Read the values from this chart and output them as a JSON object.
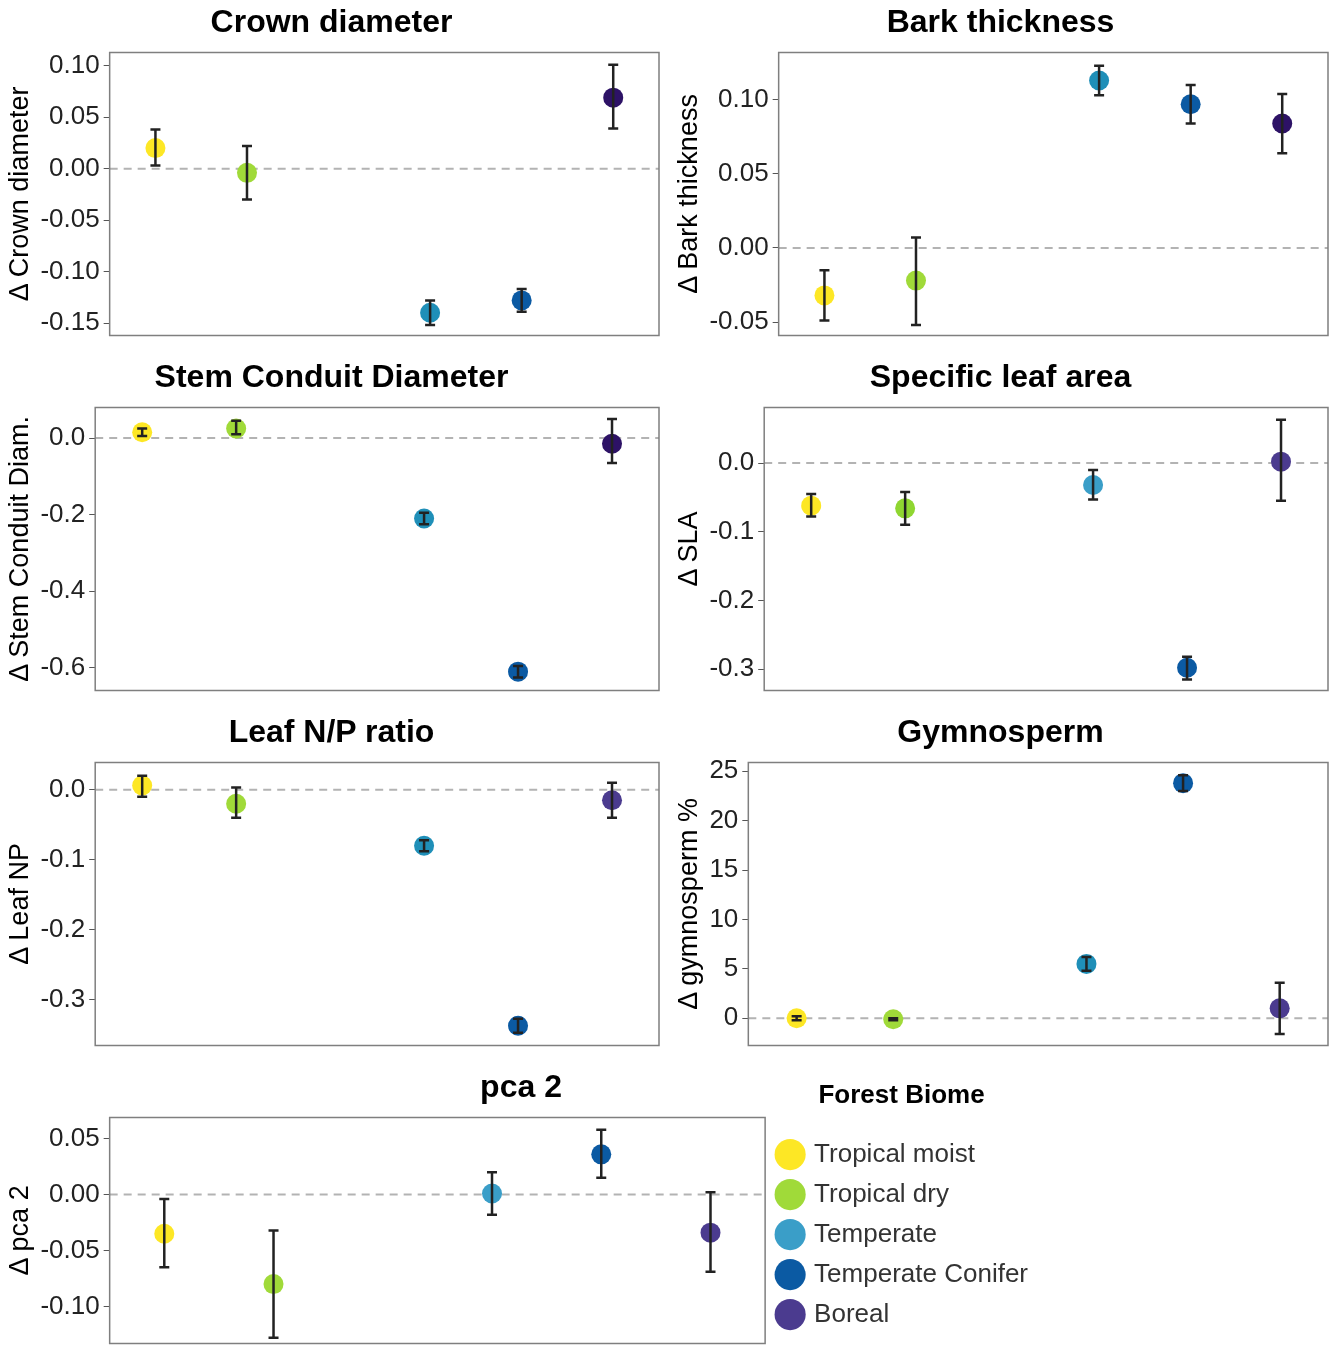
{
  "chart_data": [
    {
      "type": "scatter",
      "title": "Crown diameter",
      "ylabel": "Δ Crown diameter",
      "categories": [
        null,
        null,
        null,
        null,
        null,
        null
      ],
      "marker": "circle",
      "tick_labels": "y",
      "ylim": [
        -0.162,
        0.113
      ],
      "yticks": [
        {
          "value": 0.1,
          "label": "0.10"
        },
        0.05,
        {
          "value": 0,
          "label": "0.00"
        },
        -0.05,
        {
          "value": -0.1,
          "label": "-0.10"
        },
        -0.15
      ],
      "ref_lines": [
        {
          "axis": "y",
          "value": 0,
          "color": "#b3b3b3",
          "line_style": "dashed"
        }
      ],
      "series": [
        {
          "color": "#fde725",
          "values": [
            0.02,
            null,
            null,
            null,
            null,
            null
          ],
          "errors": [
            [
              0.003,
              0.038
            ],
            null,
            null,
            null,
            null,
            null
          ]
        },
        {
          "color": "#a0da39",
          "values": [
            null,
            -0.004,
            null,
            null,
            null,
            null
          ],
          "errors": [
            null,
            [
              -0.03,
              0.022
            ],
            null,
            null,
            null,
            null
          ]
        },
        {
          "color": "#1f8fb8",
          "values": [
            null,
            null,
            null,
            -0.14,
            null,
            null
          ],
          "errors": [
            null,
            null,
            null,
            [
              -0.152,
              -0.128
            ],
            null,
            null
          ]
        },
        {
          "color": "#0b5aa3",
          "values": [
            null,
            null,
            null,
            null,
            -0.128,
            null
          ],
          "errors": [
            null,
            null,
            null,
            null,
            [
              -0.139,
              -0.117
            ],
            null
          ]
        },
        {
          "color": "#2d1266",
          "values": [
            null,
            null,
            null,
            null,
            null,
            0.069
          ],
          "errors": [
            null,
            null,
            null,
            null,
            null,
            [
              0.039,
              0.101
            ]
          ]
        }
      ]
    },
    {
      "type": "scatter",
      "title": "Bark thickness",
      "ylabel": "Δ Bark thickness",
      "categories": [
        null,
        null,
        null,
        null,
        null,
        null
      ],
      "marker": "circle",
      "tick_labels": "y",
      "ylim": [
        -0.059,
        0.132
      ],
      "yticks": [
        {
          "value": 0.1,
          "label": "0.10"
        },
        0.05,
        {
          "value": 0,
          "label": "0.00"
        },
        -0.05
      ],
      "ref_lines": [
        {
          "axis": "y",
          "value": 0,
          "color": "#b3b3b3",
          "line_style": "dashed"
        }
      ],
      "series": [
        {
          "color": "#fde725",
          "values": [
            -0.032,
            null,
            null,
            null,
            null,
            null
          ],
          "errors": [
            [
              -0.049,
              -0.015
            ],
            null,
            null,
            null,
            null,
            null
          ]
        },
        {
          "color": "#a0da39",
          "values": [
            null,
            -0.022,
            null,
            null,
            null,
            null
          ],
          "errors": [
            null,
            [
              -0.052,
              0.007
            ],
            null,
            null,
            null,
            null
          ]
        },
        {
          "color": "#1f8fb8",
          "values": [
            null,
            null,
            null,
            0.113,
            null,
            null
          ],
          "errors": [
            null,
            null,
            null,
            [
              0.103,
              0.123
            ],
            null,
            null
          ]
        },
        {
          "color": "#0b5aa3",
          "values": [
            null,
            null,
            null,
            null,
            0.097,
            null
          ],
          "errors": [
            null,
            null,
            null,
            null,
            [
              0.084,
              0.11
            ],
            null
          ]
        },
        {
          "color": "#2d1266",
          "values": [
            null,
            null,
            null,
            null,
            null,
            0.084
          ],
          "errors": [
            null,
            null,
            null,
            null,
            null,
            [
              0.064,
              0.104
            ]
          ]
        }
      ]
    },
    {
      "type": "scatter",
      "title": "Stem Conduit Diameter",
      "ylabel": "Δ Stem Conduit Diam.",
      "categories": [
        null,
        null,
        null,
        null,
        null,
        null
      ],
      "marker": "circle",
      "tick_labels": "y",
      "ylim": [
        -0.659,
        0.08
      ],
      "yticks": [
        {
          "value": 0,
          "label": "0.0"
        },
        -0.2,
        -0.4,
        -0.6
      ],
      "ref_lines": [
        {
          "axis": "y",
          "value": 0,
          "color": "#b3b3b3",
          "line_style": "dashed"
        }
      ],
      "series": [
        {
          "color": "#fde725",
          "values": [
            0.015,
            null,
            null,
            null,
            null,
            null
          ],
          "errors": [
            [
              0.005,
              0.025
            ],
            null,
            null,
            null,
            null,
            null
          ]
        },
        {
          "color": "#a0da39",
          "values": [
            null,
            0.025,
            null,
            null,
            null,
            null
          ],
          "errors": [
            null,
            [
              0.01,
              0.045
            ],
            null,
            null,
            null,
            null
          ]
        },
        {
          "color": "#1f8fb8",
          "values": [
            null,
            null,
            null,
            -0.21,
            null,
            null
          ],
          "errors": [
            null,
            null,
            null,
            [
              -0.225,
              -0.195
            ],
            null,
            null
          ]
        },
        {
          "color": "#0b5aa3",
          "values": [
            null,
            null,
            null,
            null,
            -0.61,
            null
          ],
          "errors": [
            null,
            null,
            null,
            null,
            [
              -0.625,
              -0.595
            ],
            null
          ]
        },
        {
          "color": "#2d1266",
          "values": [
            null,
            null,
            null,
            null,
            null,
            -0.015
          ],
          "errors": [
            null,
            null,
            null,
            null,
            null,
            [
              -0.065,
              0.05
            ]
          ]
        }
      ]
    },
    {
      "type": "scatter",
      "title": "Specific leaf area",
      "ylabel": "Δ SLA",
      "categories": [
        null,
        null,
        null,
        null,
        null,
        null
      ],
      "marker": "circle",
      "tick_labels": "y",
      "ylim": [
        -0.331,
        0.081
      ],
      "yticks": [
        {
          "value": 0,
          "label": "0.0"
        },
        -0.1,
        -0.2,
        -0.3
      ],
      "ref_lines": [
        {
          "axis": "y",
          "value": 0,
          "color": "#b3b3b3",
          "line_style": "dashed"
        }
      ],
      "series": [
        {
          "color": "#fde725",
          "values": [
            -0.062,
            null,
            null,
            null,
            null,
            null
          ],
          "errors": [
            [
              -0.078,
              -0.045
            ],
            null,
            null,
            null,
            null,
            null
          ]
        },
        {
          "color": "#8fd631",
          "values": [
            null,
            -0.066,
            null,
            null,
            null,
            null
          ],
          "errors": [
            null,
            [
              -0.09,
              -0.042
            ],
            null,
            null,
            null,
            null
          ]
        },
        {
          "color": "#3a9ec8",
          "values": [
            null,
            null,
            null,
            -0.032,
            null,
            null
          ],
          "errors": [
            null,
            null,
            null,
            [
              -0.053,
              -0.01
            ],
            null,
            null
          ]
        },
        {
          "color": "#0b5aa3",
          "values": [
            null,
            null,
            null,
            null,
            -0.298,
            null
          ],
          "errors": [
            null,
            null,
            null,
            null,
            [
              -0.315,
              -0.282
            ],
            null
          ]
        },
        {
          "color": "#4b3b8f",
          "values": [
            null,
            null,
            null,
            null,
            null,
            0.002
          ],
          "errors": [
            null,
            null,
            null,
            null,
            null,
            [
              -0.055,
              0.063
            ]
          ]
        }
      ]
    },
    {
      "type": "scatter",
      "title": "Leaf N/P ratio",
      "ylabel": "Δ Leaf NP",
      "categories": [
        null,
        null,
        null,
        null,
        null,
        null
      ],
      "marker": "circle",
      "tick_labels": "y",
      "ylim": [
        -0.365,
        0.039
      ],
      "yticks": [
        {
          "value": 0,
          "label": "0.0"
        },
        -0.1,
        -0.2,
        -0.3
      ],
      "ref_lines": [
        {
          "axis": "y",
          "value": 0,
          "color": "#b3b3b3",
          "line_style": "dashed"
        }
      ],
      "series": [
        {
          "color": "#fde725",
          "values": [
            0.006,
            null,
            null,
            null,
            null,
            null
          ],
          "errors": [
            [
              -0.01,
              0.02
            ],
            null,
            null,
            null,
            null,
            null
          ]
        },
        {
          "color": "#a0da39",
          "values": [
            null,
            -0.02,
            null,
            null,
            null,
            null
          ],
          "errors": [
            null,
            [
              -0.04,
              0.003
            ],
            null,
            null,
            null,
            null
          ]
        },
        {
          "color": "#1f8fb8",
          "values": [
            null,
            null,
            null,
            -0.08,
            null,
            null
          ],
          "errors": [
            null,
            null,
            null,
            [
              -0.088,
              -0.072
            ],
            null,
            null
          ]
        },
        {
          "color": "#0b5aa3",
          "values": [
            null,
            null,
            null,
            null,
            -0.337,
            null
          ],
          "errors": [
            null,
            null,
            null,
            null,
            [
              -0.347,
              -0.327
            ],
            null
          ]
        },
        {
          "color": "#4b3b8f",
          "values": [
            null,
            null,
            null,
            null,
            null,
            -0.015
          ],
          "errors": [
            null,
            null,
            null,
            null,
            null,
            [
              -0.04,
              0.01
            ]
          ]
        }
      ]
    },
    {
      "type": "scatter",
      "title": "Gymnosperm",
      "ylabel": "Δ gymnosperm %",
      "categories": [
        null,
        null,
        null,
        null,
        null,
        null
      ],
      "marker": "circle",
      "tick_labels": "y",
      "ylim": [
        -2.75,
        25.9
      ],
      "yticks": [
        0,
        5,
        10,
        15,
        20,
        25
      ],
      "ref_lines": [
        {
          "axis": "y",
          "value": 0,
          "color": "#b3b3b3",
          "line_style": "dashed"
        }
      ],
      "series": [
        {
          "color": "#fde725",
          "values": [
            0,
            null,
            null,
            null,
            null,
            null
          ],
          "errors": [
            [
              -0.2,
              0.2
            ],
            null,
            null,
            null,
            null,
            null
          ]
        },
        {
          "color": "#a0da39",
          "values": [
            null,
            -0.1,
            null,
            null,
            null,
            null
          ],
          "errors": [
            null,
            [
              -0.2,
              0
            ],
            null,
            null,
            null,
            null
          ]
        },
        {
          "color": "#1f8fb8",
          "values": [
            null,
            null,
            null,
            5.5,
            null,
            null
          ],
          "errors": [
            null,
            null,
            null,
            [
              4.8,
              6.2
            ],
            null,
            null
          ]
        },
        {
          "color": "#0b5aa3",
          "values": [
            null,
            null,
            null,
            null,
            23.8,
            null
          ],
          "errors": [
            null,
            null,
            null,
            null,
            [
              23,
              24.6
            ],
            null
          ]
        },
        {
          "color": "#4b3b8f",
          "values": [
            null,
            null,
            null,
            null,
            null,
            1
          ],
          "errors": [
            null,
            null,
            null,
            null,
            null,
            [
              -1.6,
              3.6
            ]
          ]
        }
      ]
    },
    {
      "type": "scatter",
      "title": "pca 2",
      "ylabel": "Δ pca 2",
      "categories": [
        null,
        null,
        null,
        null,
        null,
        null
      ],
      "marker": "circle",
      "tick_labels": "y",
      "ylim": [
        -0.133,
        0.069
      ],
      "yticks": [
        0.05,
        {
          "value": 0,
          "label": "0.00"
        },
        -0.05,
        {
          "value": -0.1,
          "label": "-0.10"
        }
      ],
      "ref_lines": [
        {
          "axis": "y",
          "value": 0,
          "color": "#b3b3b3",
          "line_style": "dashed"
        }
      ],
      "legend": "right",
      "legend_title": "Forest Biome",
      "series": [
        {
          "name": "Tropical moist",
          "color": "#fde725",
          "values": [
            -0.035,
            null,
            null,
            null,
            null,
            null
          ],
          "errors": [
            [
              -0.065,
              -0.004
            ],
            null,
            null,
            null,
            null,
            null
          ]
        },
        {
          "name": "Tropical dry",
          "color": "#a0da39",
          "values": [
            null,
            -0.08,
            null,
            null,
            null,
            null
          ],
          "errors": [
            null,
            [
              -0.128,
              -0.032
            ],
            null,
            null,
            null,
            null
          ]
        },
        {
          "name": "Temperate",
          "color": "#3a9ec8",
          "values": [
            null,
            null,
            null,
            0.001,
            null,
            null
          ],
          "errors": [
            null,
            null,
            null,
            [
              -0.018,
              0.02
            ],
            null,
            null
          ]
        },
        {
          "name": "Temperate Conifer",
          "color": "#0b5aa3",
          "values": [
            null,
            null,
            null,
            null,
            0.036,
            null
          ],
          "errors": [
            null,
            null,
            null,
            null,
            [
              0.015,
              0.058
            ],
            null
          ]
        },
        {
          "name": "Boreal",
          "color": "#4b3b8f",
          "values": [
            null,
            null,
            null,
            null,
            null,
            -0.034
          ],
          "errors": [
            null,
            null,
            null,
            null,
            null,
            [
              -0.069,
              0.002
            ]
          ]
        }
      ]
    }
  ]
}
